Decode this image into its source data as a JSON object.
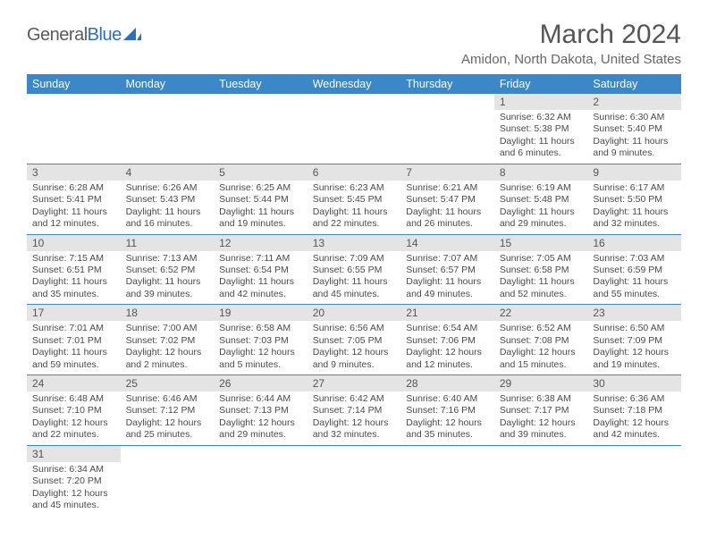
{
  "logo": {
    "textA": "General",
    "textB": "Blue"
  },
  "title": "March 2024",
  "location": "Amidon, North Dakota, United States",
  "colors": {
    "header_bg": "#3b87c8",
    "header_text": "#ffffff",
    "daynum_bg": "#e4e4e4",
    "row_border": "#3b87c8",
    "body_text": "#4a4a4a",
    "logo_blue": "#2d6fb8"
  },
  "weekdays": [
    "Sunday",
    "Monday",
    "Tuesday",
    "Wednesday",
    "Thursday",
    "Friday",
    "Saturday"
  ],
  "first_weekday_index": 5,
  "num_days": 31,
  "days": {
    "1": {
      "sunrise": "6:32 AM",
      "sunset": "5:38 PM",
      "daylight": "11 hours and 6 minutes."
    },
    "2": {
      "sunrise": "6:30 AM",
      "sunset": "5:40 PM",
      "daylight": "11 hours and 9 minutes."
    },
    "3": {
      "sunrise": "6:28 AM",
      "sunset": "5:41 PM",
      "daylight": "11 hours and 12 minutes."
    },
    "4": {
      "sunrise": "6:26 AM",
      "sunset": "5:43 PM",
      "daylight": "11 hours and 16 minutes."
    },
    "5": {
      "sunrise": "6:25 AM",
      "sunset": "5:44 PM",
      "daylight": "11 hours and 19 minutes."
    },
    "6": {
      "sunrise": "6:23 AM",
      "sunset": "5:45 PM",
      "daylight": "11 hours and 22 minutes."
    },
    "7": {
      "sunrise": "6:21 AM",
      "sunset": "5:47 PM",
      "daylight": "11 hours and 26 minutes."
    },
    "8": {
      "sunrise": "6:19 AM",
      "sunset": "5:48 PM",
      "daylight": "11 hours and 29 minutes."
    },
    "9": {
      "sunrise": "6:17 AM",
      "sunset": "5:50 PM",
      "daylight": "11 hours and 32 minutes."
    },
    "10": {
      "sunrise": "7:15 AM",
      "sunset": "6:51 PM",
      "daylight": "11 hours and 35 minutes."
    },
    "11": {
      "sunrise": "7:13 AM",
      "sunset": "6:52 PM",
      "daylight": "11 hours and 39 minutes."
    },
    "12": {
      "sunrise": "7:11 AM",
      "sunset": "6:54 PM",
      "daylight": "11 hours and 42 minutes."
    },
    "13": {
      "sunrise": "7:09 AM",
      "sunset": "6:55 PM",
      "daylight": "11 hours and 45 minutes."
    },
    "14": {
      "sunrise": "7:07 AM",
      "sunset": "6:57 PM",
      "daylight": "11 hours and 49 minutes."
    },
    "15": {
      "sunrise": "7:05 AM",
      "sunset": "6:58 PM",
      "daylight": "11 hours and 52 minutes."
    },
    "16": {
      "sunrise": "7:03 AM",
      "sunset": "6:59 PM",
      "daylight": "11 hours and 55 minutes."
    },
    "17": {
      "sunrise": "7:01 AM",
      "sunset": "7:01 PM",
      "daylight": "11 hours and 59 minutes."
    },
    "18": {
      "sunrise": "7:00 AM",
      "sunset": "7:02 PM",
      "daylight": "12 hours and 2 minutes."
    },
    "19": {
      "sunrise": "6:58 AM",
      "sunset": "7:03 PM",
      "daylight": "12 hours and 5 minutes."
    },
    "20": {
      "sunrise": "6:56 AM",
      "sunset": "7:05 PM",
      "daylight": "12 hours and 9 minutes."
    },
    "21": {
      "sunrise": "6:54 AM",
      "sunset": "7:06 PM",
      "daylight": "12 hours and 12 minutes."
    },
    "22": {
      "sunrise": "6:52 AM",
      "sunset": "7:08 PM",
      "daylight": "12 hours and 15 minutes."
    },
    "23": {
      "sunrise": "6:50 AM",
      "sunset": "7:09 PM",
      "daylight": "12 hours and 19 minutes."
    },
    "24": {
      "sunrise": "6:48 AM",
      "sunset": "7:10 PM",
      "daylight": "12 hours and 22 minutes."
    },
    "25": {
      "sunrise": "6:46 AM",
      "sunset": "7:12 PM",
      "daylight": "12 hours and 25 minutes."
    },
    "26": {
      "sunrise": "6:44 AM",
      "sunset": "7:13 PM",
      "daylight": "12 hours and 29 minutes."
    },
    "27": {
      "sunrise": "6:42 AM",
      "sunset": "7:14 PM",
      "daylight": "12 hours and 32 minutes."
    },
    "28": {
      "sunrise": "6:40 AM",
      "sunset": "7:16 PM",
      "daylight": "12 hours and 35 minutes."
    },
    "29": {
      "sunrise": "6:38 AM",
      "sunset": "7:17 PM",
      "daylight": "12 hours and 39 minutes."
    },
    "30": {
      "sunrise": "6:36 AM",
      "sunset": "7:18 PM",
      "daylight": "12 hours and 42 minutes."
    },
    "31": {
      "sunrise": "6:34 AM",
      "sunset": "7:20 PM",
      "daylight": "12 hours and 45 minutes."
    }
  },
  "labels": {
    "sunrise": "Sunrise: ",
    "sunset": "Sunset: ",
    "daylight": "Daylight: "
  }
}
